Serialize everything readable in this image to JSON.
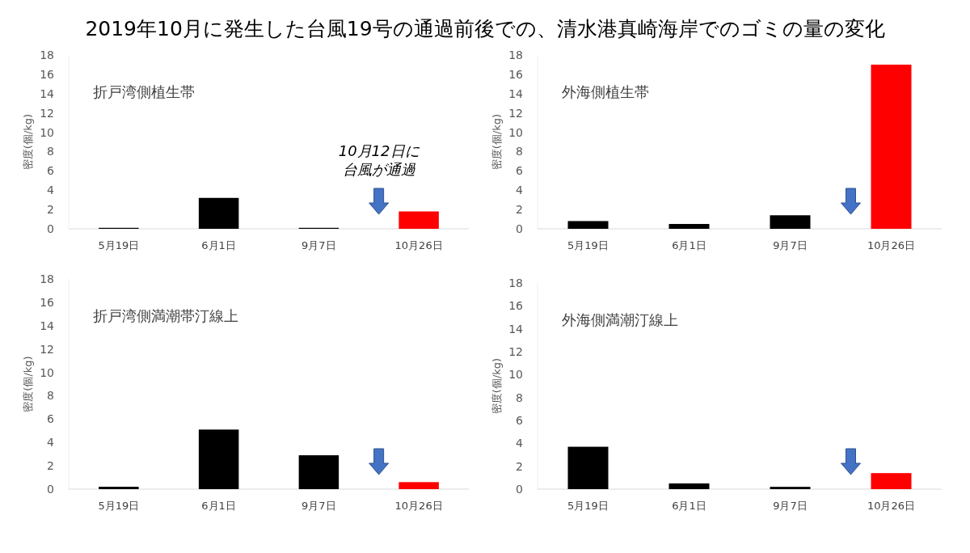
{
  "chart_data": [
    {
      "type": "bar",
      "title": "2019年10月に発生した台風19号の通過前後での、清水港真崎海岸でのゴミの量の変化",
      "subtitle": "折戸湾側植生帯",
      "ylabel": "密度(個/kg)",
      "categories": [
        "5月19日",
        "6月1日",
        "9月7日",
        "10月26日"
      ],
      "values": [
        0.1,
        3.2,
        0.1,
        1.8
      ],
      "colors": [
        "#000000",
        "#000000",
        "#000000",
        "#ff0000"
      ],
      "ylim": [
        0,
        18
      ],
      "yticks": [
        0,
        2,
        4,
        6,
        8,
        10,
        12,
        14,
        16,
        18
      ],
      "annotations": [
        "10月12日に",
        "台風が通過"
      ]
    },
    {
      "type": "bar",
      "subtitle": "外海側植生帯",
      "ylabel": "密度(個/kg)",
      "categories": [
        "5月19日",
        "6月1日",
        "9月7日",
        "10月26日"
      ],
      "values": [
        0.8,
        0.5,
        1.4,
        17
      ],
      "colors": [
        "#000000",
        "#000000",
        "#000000",
        "#ff0000"
      ],
      "ylim": [
        0,
        18
      ],
      "yticks": [
        0,
        2,
        4,
        6,
        8,
        10,
        12,
        14,
        16,
        18
      ]
    },
    {
      "type": "bar",
      "subtitle": "折戸湾側満潮帯汀線上",
      "ylabel": "密度(個/kg)",
      "categories": [
        "5月19日",
        "6月1日",
        "9月7日",
        "10月26日"
      ],
      "values": [
        0.2,
        5.1,
        2.9,
        0.6
      ],
      "colors": [
        "#000000",
        "#000000",
        "#000000",
        "#ff0000"
      ],
      "ylim": [
        0,
        18
      ],
      "yticks": [
        0,
        2,
        4,
        6,
        8,
        10,
        12,
        14,
        16,
        18
      ]
    },
    {
      "type": "bar",
      "subtitle": "外海側満潮汀線上",
      "ylabel": "密度(個/kg)",
      "categories": [
        "5月19日",
        "6月1日",
        "9月7日",
        "10月26日"
      ],
      "values": [
        3.7,
        0.5,
        0.2,
        1.4
      ],
      "colors": [
        "#000000",
        "#000000",
        "#000000",
        "#ff0000"
      ],
      "ylim": [
        0,
        18
      ],
      "yticks": [
        0,
        2,
        4,
        6,
        8,
        10,
        12,
        14,
        16,
        18
      ]
    }
  ]
}
